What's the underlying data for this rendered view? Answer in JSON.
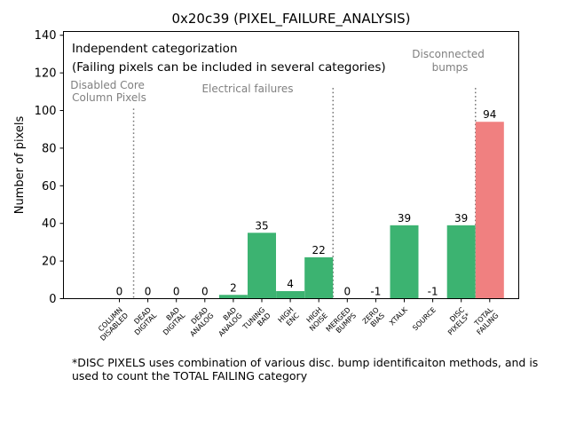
{
  "chart_data": {
    "type": "bar",
    "title": "0x20c39 (PIXEL_FAILURE_ANALYSIS)",
    "ylabel": "Number of pixels",
    "xlabel": "",
    "ylim": [
      0,
      142
    ],
    "yticks": [
      0,
      20,
      40,
      60,
      80,
      100,
      120,
      140
    ],
    "grid": false,
    "categories": [
      [
        "COLUMN",
        "DISABLED"
      ],
      [
        "DEAD",
        "DIGITAL"
      ],
      [
        "BAD",
        "DIGITAL"
      ],
      [
        "DEAD",
        "ANALOG"
      ],
      [
        "BAD",
        "ANALOG"
      ],
      [
        "TUNING",
        "BAD"
      ],
      [
        "HIGH",
        "ENC"
      ],
      [
        "HIGH",
        "NOISE"
      ],
      [
        "MERGED",
        "BUMPS"
      ],
      [
        "ZERO",
        "BIAS"
      ],
      [
        "XTALK"
      ],
      [
        "SOURCE"
      ],
      [
        "DISC",
        "PIXELS*"
      ],
      [
        "TOTAL",
        "FAILING"
      ]
    ],
    "values": [
      0,
      0,
      0,
      0,
      2,
      35,
      4,
      22,
      0,
      -1,
      39,
      -1,
      39,
      94
    ],
    "bar_colors": [
      "#3cb371",
      "#3cb371",
      "#3cb371",
      "#3cb371",
      "#3cb371",
      "#3cb371",
      "#3cb371",
      "#3cb371",
      "#3cb371",
      "#3cb371",
      "#3cb371",
      "#3cb371",
      "#3cb371",
      "#f08080"
    ],
    "annotations": {
      "info_line1": "Independent categorization",
      "info_line2": "(Failing pixels can be included in several categories)",
      "group_disabled": [
        "Disabled Core",
        "Column Pixels"
      ],
      "group_electrical": "Electrical failures",
      "group_disconnected": [
        "Disconnected",
        "bumps"
      ]
    },
    "separators_after_index": [
      0,
      7,
      12
    ]
  },
  "footnote": "*DISC PIXELS uses combination of various disc. bump identificaiton methods, and is used to count the TOTAL FAILING category"
}
